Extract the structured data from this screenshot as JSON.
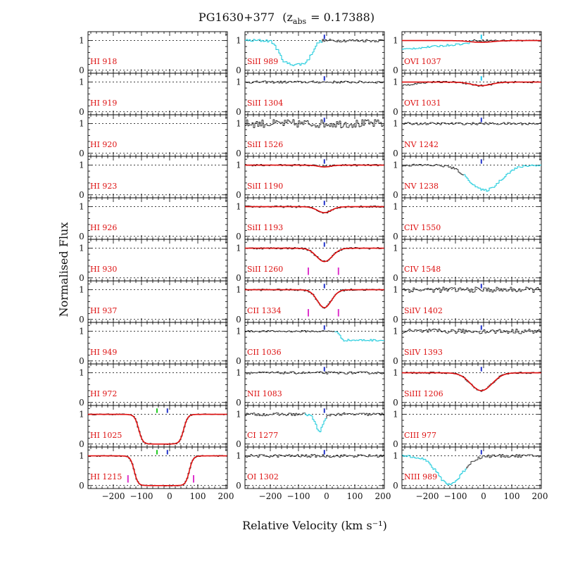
{
  "chart_data": {
    "type": "line",
    "title_main": "PG1630+377",
    "title_z": "(z",
    "title_sub": "abs",
    "title_eq": "= 0.17388)",
    "xlabel": "Relative Velocity (km s⁻¹)",
    "ylabel": "Normalised Flux",
    "xlim": [
      -290,
      205
    ],
    "ylim": [
      -0.1,
      1.3
    ],
    "xticks": [
      -200,
      -100,
      0,
      100,
      200
    ],
    "yticks": [
      0,
      1
    ],
    "xtick_labels": [
      "−200",
      "−100",
      "0",
      "100",
      "200"
    ],
    "ytick_labels": [
      "0",
      "1"
    ],
    "ref_velocity": -8,
    "columns": [
      {
        "panels": [
          {
            "label": "HI 918",
            "spectrum": null,
            "fit": null
          },
          {
            "label": "HI 919",
            "spectrum": null,
            "fit": null
          },
          {
            "label": "HI 920",
            "spectrum": null,
            "fit": null
          },
          {
            "label": "HI 923",
            "spectrum": null,
            "fit": null
          },
          {
            "label": "HI 926",
            "spectrum": null,
            "fit": null
          },
          {
            "label": "HI 930",
            "spectrum": null,
            "fit": null
          },
          {
            "label": "HI 937",
            "spectrum": null,
            "fit": null
          },
          {
            "label": "HI 949",
            "spectrum": null,
            "fit": null
          },
          {
            "label": "HI 972",
            "spectrum": null,
            "fit": null
          },
          {
            "label": "HI 1025",
            "spectrum": {
              "kind": "trough",
              "center": -30,
              "half_width": 80,
              "edge": 16,
              "depth": 1.0,
              "noise": 0.02
            },
            "fit": {
              "kind": "trough",
              "center": -30,
              "half_width": 80,
              "edge": 16,
              "depth": 1.0
            },
            "markers": [
              {
                "v": -45,
                "color": "#22cc22"
              },
              {
                "v": -8,
                "color": "#2233cc"
              }
            ]
          },
          {
            "label": "HI 1215",
            "spectrum": {
              "kind": "trough",
              "center": -28,
              "half_width": 98,
              "edge": 15,
              "depth": 1.0,
              "noise": 0.02
            },
            "fit": {
              "kind": "trough",
              "center": -28,
              "half_width": 98,
              "edge": 15,
              "depth": 1.0
            },
            "markers": [
              {
                "v": -45,
                "color": "#22cc22"
              },
              {
                "v": -8,
                "color": "#2233cc"
              }
            ],
            "pink_markers": [
              -148,
              85
            ]
          }
        ]
      },
      {
        "panels": [
          {
            "label": "SiII 989",
            "spectrum": {
              "kind": "cyan_absorb",
              "center": -110,
              "half_width": 55,
              "depth": 0.8,
              "noise": 0.05,
              "cyan_range": [
                -290,
                -15
              ]
            },
            "fit": null,
            "markers": [
              {
                "v": -8,
                "color": "#2233cc"
              }
            ]
          },
          {
            "label": "SiII 1304",
            "spectrum": {
              "kind": "flat",
              "noise": 0.04
            },
            "fit": null,
            "markers": [
              {
                "v": -8,
                "color": "#2233cc"
              }
            ]
          },
          {
            "label": "SiII 1526",
            "spectrum": {
              "kind": "flat",
              "noise": 0.14
            },
            "fit": null,
            "markers": [
              {
                "v": -8,
                "color": "#2233cc"
              }
            ]
          },
          {
            "label": "SiII 1190",
            "spectrum": {
              "kind": "gauss",
              "center": -8,
              "sigma": 22,
              "depth": 0.05,
              "noise": 0.03
            },
            "fit": {
              "kind": "gauss",
              "center": -8,
              "sigma": 22,
              "depth": 0.06
            },
            "markers": [
              {
                "v": -8,
                "color": "#2233cc"
              }
            ]
          },
          {
            "label": "SiII 1193",
            "spectrum": {
              "kind": "gauss",
              "center": -8,
              "sigma": 25,
              "depth": 0.2,
              "noise": 0.03
            },
            "fit": {
              "kind": "gauss",
              "center": -8,
              "sigma": 25,
              "depth": 0.2
            },
            "markers": [
              {
                "v": -8,
                "color": "#2233cc"
              }
            ]
          },
          {
            "label": "SiII 1260",
            "spectrum": {
              "kind": "gauss",
              "center": -8,
              "sigma": 28,
              "depth": 0.45,
              "noise": 0.03
            },
            "fit": {
              "kind": "gauss",
              "center": -8,
              "sigma": 28,
              "depth": 0.45
            },
            "markers": [
              {
                "v": -8,
                "color": "#2233cc"
              }
            ],
            "pink_markers": [
              -65,
              42
            ]
          },
          {
            "label": "CII 1334",
            "spectrum": {
              "kind": "gauss",
              "center": -8,
              "sigma": 25,
              "depth": 0.6,
              "noise": 0.03
            },
            "fit": {
              "kind": "gauss",
              "center": -8,
              "sigma": 25,
              "depth": 0.6
            },
            "markers": [
              {
                "v": -8,
                "color": "#2233cc"
              }
            ],
            "pink_markers": [
              -65,
              42
            ]
          },
          {
            "label": "CII 1036",
            "spectrum": {
              "kind": "step",
              "noise": 0.03,
              "cyan_range": [
                30,
                205
              ]
            },
            "fit": null,
            "markers": [
              {
                "v": -8,
                "color": "#2233cc"
              }
            ]
          },
          {
            "label": "NII 1083",
            "spectrum": {
              "kind": "flat",
              "noise": 0.04
            },
            "fit": null,
            "markers": [
              {
                "v": -8,
                "color": "#2233cc"
              }
            ]
          },
          {
            "label": "CI 1277",
            "spectrum": {
              "kind": "gauss",
              "center": -25,
              "sigma": 14,
              "depth": 0.55,
              "noise": 0.05,
              "cyan_range": [
                -75,
                0
              ]
            },
            "fit": null,
            "markers": [
              {
                "v": -8,
                "color": "#2233cc"
              }
            ]
          },
          {
            "label": "OI 1302",
            "spectrum": {
              "kind": "flat",
              "noise": 0.05
            },
            "fit": null,
            "markers": [
              {
                "v": -8,
                "color": "#2233cc"
              }
            ]
          }
        ]
      },
      {
        "panels": [
          {
            "label": "OVI 1037",
            "spectrum": {
              "kind": "ramp",
              "start": 0.7,
              "noise": 0.03,
              "cyan_range": [
                -290,
                -40
              ]
            },
            "fit": {
              "kind": "gauss",
              "center": -8,
              "sigma": 40,
              "depth": 0.06
            },
            "markers": [
              {
                "v": -8,
                "color": "#22ccee"
              }
            ]
          },
          {
            "label": "OVI 1031",
            "spectrum": {
              "kind": "gauss_left",
              "center": -8,
              "sigma": 35,
              "depth": 0.12,
              "noise": 0.03
            },
            "fit": {
              "kind": "gauss",
              "center": -8,
              "sigma": 35,
              "depth": 0.12
            },
            "markers": [
              {
                "v": -8,
                "color": "#22ccee"
              }
            ]
          },
          {
            "label": "NV 1242",
            "spectrum": {
              "kind": "flat",
              "noise": 0.04
            },
            "fit": null,
            "markers": [
              {
                "v": -8,
                "color": "#2233cc"
              }
            ]
          },
          {
            "label": "NV 1238",
            "spectrum": {
              "kind": "gauss",
              "center": 5,
              "sigma": 55,
              "depth": 0.85,
              "noise": 0.04,
              "cyan_range": [
                -70,
                205
              ]
            },
            "fit": null,
            "markers": [
              {
                "v": -8,
                "color": "#2233cc"
              }
            ]
          },
          {
            "label": "CIV 1550",
            "spectrum": null,
            "fit": null
          },
          {
            "label": "CIV 1548",
            "spectrum": null,
            "fit": null
          },
          {
            "label": "SiIV 1402",
            "spectrum": {
              "kind": "flat",
              "noise": 0.09
            },
            "fit": null,
            "markers": [
              {
                "v": -8,
                "color": "#2233cc"
              }
            ]
          },
          {
            "label": "SiIV 1393",
            "spectrum": {
              "kind": "flat",
              "noise": 0.08
            },
            "fit": null,
            "markers": [
              {
                "v": -8,
                "color": "#2233cc"
              }
            ]
          },
          {
            "label": "SiIII 1206",
            "spectrum": {
              "kind": "gauss",
              "center": -8,
              "sigma": 38,
              "depth": 0.6,
              "noise": 0.03
            },
            "fit": {
              "kind": "gauss",
              "center": -8,
              "sigma": 38,
              "depth": 0.6
            },
            "markers": [
              {
                "v": -8,
                "color": "#2233cc"
              }
            ]
          },
          {
            "label": "CIII 977",
            "spectrum": null,
            "fit": null
          },
          {
            "label": "NIII 989",
            "spectrum": {
              "kind": "gauss",
              "center": -120,
              "sigma": 45,
              "depth": 0.95,
              "noise": 0.05,
              "cyan_range": [
                -290,
                -60
              ]
            },
            "fit": null,
            "markers": [
              {
                "v": -8,
                "color": "#2233cc"
              }
            ]
          }
        ]
      }
    ]
  }
}
